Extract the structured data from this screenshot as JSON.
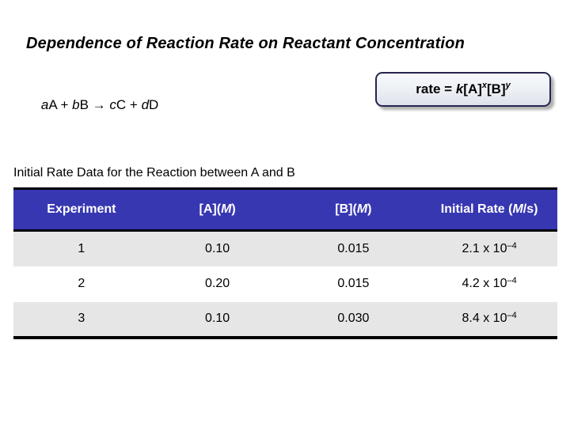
{
  "slide": {
    "title": "Dependence of Reaction Rate on Reactant Concentration",
    "equation": {
      "c1": "a",
      "t1": "A + ",
      "c2": "b",
      "t2": "B → ",
      "c3": "c",
      "t3": "C + ",
      "c4": "d",
      "t4": "D"
    },
    "rate_law": {
      "prefix": "rate = ",
      "k": "k",
      "bracket_a": "[A]",
      "exp_x": "x",
      "bracket_b": "[B]",
      "exp_y": "y"
    },
    "table": {
      "caption": "Initial Rate Data for the Reaction between A and B",
      "headers": {
        "experiment": "Experiment",
        "a_pre": "[A](",
        "a_m": "M",
        "a_post": ")",
        "b_pre": "[B](",
        "b_m": "M",
        "b_post": ")",
        "rate_pre": "Initial Rate (",
        "rate_m": "M",
        "rate_post": "/s)"
      },
      "rows": [
        {
          "experiment": "1",
          "a": "0.10",
          "b": "0.015",
          "rate_base": "2.1 x 10",
          "rate_exp": "–4"
        },
        {
          "experiment": "2",
          "a": "0.20",
          "b": "0.015",
          "rate_base": "4.2 x 10",
          "rate_exp": "–4"
        },
        {
          "experiment": "3",
          "a": "0.10",
          "b": "0.030",
          "rate_base": "8.4 x 10",
          "rate_exp": "–4"
        }
      ]
    },
    "colors": {
      "header_bg": "#3737B2",
      "header_text": "#FFFFFF",
      "row_alt_bg": "#E6E6E6",
      "rule_black": "#000000",
      "rate_box_border": "#252550",
      "rate_box_fill_top": "#F7F9FC",
      "rate_box_fill_bottom": "#DDE2EA",
      "body_text": "#000000",
      "background": "#FFFFFF"
    }
  },
  "chart_data": {
    "type": "table",
    "title": "Initial Rate Data for the Reaction between A and B",
    "columns": [
      "Experiment",
      "[A](M)",
      "[B](M)",
      "Initial Rate (M/s)"
    ],
    "rows": [
      [
        "1",
        "0.10",
        "0.015",
        "2.1 x 10^-4"
      ],
      [
        "2",
        "0.20",
        "0.015",
        "4.2 x 10^-4"
      ],
      [
        "3",
        "0.10",
        "0.030",
        "8.4 x 10^-4"
      ]
    ]
  }
}
